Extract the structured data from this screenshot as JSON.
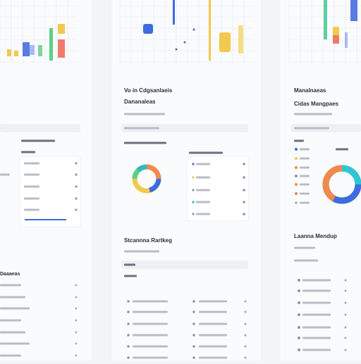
{
  "left": {
    "section_title": "Daaaeas"
  },
  "middle": {
    "title": "Vo in Cdgsanlaeis",
    "subtitle": "Dananaleas",
    "section_title": "Stcannna Rartkeg"
  },
  "right": {
    "title": "Manalnaeas",
    "subtitle": "Cidas Mangpaes",
    "section_title": "Laanna Mendup"
  }
}
